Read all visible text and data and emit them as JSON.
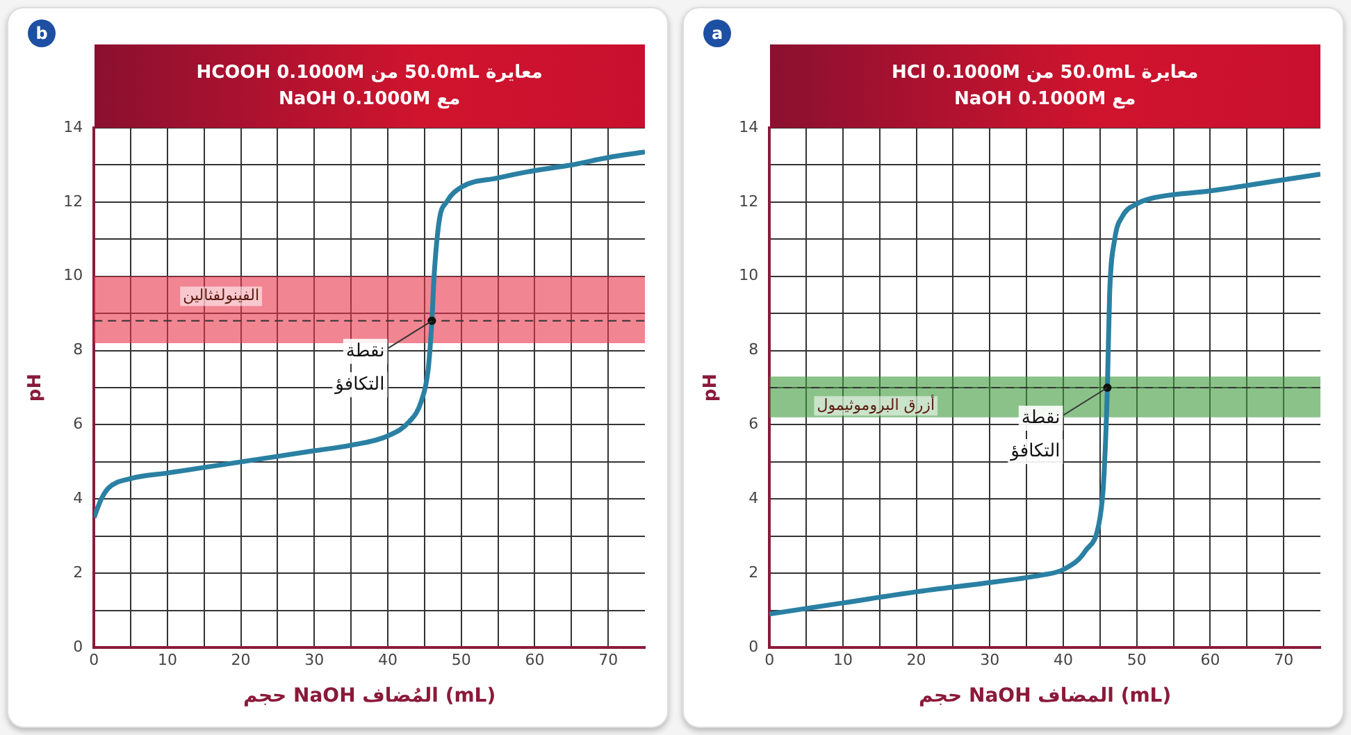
{
  "chart_data": [
    {
      "type": "line",
      "title": "معايرة 50.0mL من HCOOH 0.1000M",
      "subtitle": "مع NaOH 0.1000M",
      "xlabel": "حجم NaOH المُضاف (mL)",
      "ylabel": "pH",
      "annotations": [
        "b",
        {
          "text": "نقطة التكافؤ",
          "x": 46,
          "y": 8.8
        }
      ],
      "series": [
        {
          "color": "#2a80a3",
          "x": [
            0,
            1,
            2,
            5,
            10,
            15,
            20,
            25,
            30,
            35,
            40,
            43,
            44.5,
            45.5,
            46,
            46.3,
            47,
            48,
            50,
            55,
            60,
            65,
            70,
            75
          ],
          "values": [
            3.5,
            4.0,
            4.3,
            4.55,
            4.7,
            4.85,
            5.0,
            5.15,
            5.3,
            5.45,
            5.7,
            6.1,
            6.6,
            7.5,
            8.8,
            10,
            11.5,
            12.0,
            12.4,
            12.65,
            12.85,
            13.0,
            13.2,
            13.35
          ]
        }
      ],
      "xlim": [
        0,
        75
      ],
      "ylim": [
        0,
        14
      ],
      "xticks": [
        0,
        {
          "value": 5,
          "label": null
        },
        10,
        {
          "value": 15,
          "label": null
        },
        20,
        {
          "value": 25,
          "label": null
        },
        30,
        {
          "value": 35,
          "label": null
        },
        40,
        {
          "value": 45,
          "label": null
        },
        50,
        {
          "value": 55,
          "label": null
        },
        60,
        {
          "value": 65,
          "label": null
        },
        70
      ],
      "yticks": [
        0,
        {
          "value": 1,
          "label": null
        },
        2,
        {
          "value": 3,
          "label": null
        },
        4,
        {
          "value": 5,
          "label": null
        },
        6,
        {
          "value": 7,
          "label": null
        },
        8,
        {
          "value": 9,
          "label": null
        },
        10,
        {
          "value": 11,
          "label": null
        },
        12,
        {
          "value": 13,
          "label": null
        },
        14
      ],
      "grid": true,
      "marker": "none",
      "bands": [
        {
          "axis": "y",
          "from": 8.2,
          "to": 10,
          "label": "الفينولفثالين",
          "color": "#e8334a"
        }
      ],
      "ref_lines": [
        {
          "axis": "y",
          "value": 8.8,
          "line_style": "dashed",
          "color": "#333333"
        }
      ]
    },
    {
      "type": "line",
      "title": "معايرة 50.0mL من HCl 0.1000M",
      "subtitle": "مع NaOH 0.1000M",
      "xlabel": "حجم NaOH المضاف (mL)",
      "ylabel": "pH",
      "annotations": [
        "a",
        {
          "text": "نقطة التكافؤ",
          "x": 46,
          "y": 7
        }
      ],
      "series": [
        {
          "color": "#2a80a3",
          "x": [
            0,
            10,
            20,
            30,
            37,
            40,
            43,
            45,
            45.5,
            46,
            46.3,
            47,
            48,
            50,
            52,
            60,
            70,
            75
          ],
          "values": [
            0.9,
            1.2,
            1.5,
            1.75,
            1.95,
            2.1,
            2.6,
            3.5,
            4.5,
            7,
            9.5,
            11,
            11.6,
            11.95,
            12.1,
            12.3,
            12.6,
            12.75
          ]
        }
      ],
      "xlim": [
        0,
        75
      ],
      "ylim": [
        0,
        14
      ],
      "xticks": [
        0,
        {
          "value": 5,
          "label": null
        },
        10,
        {
          "value": 15,
          "label": null
        },
        20,
        {
          "value": 25,
          "label": null
        },
        30,
        {
          "value": 35,
          "label": null
        },
        40,
        {
          "value": 45,
          "label": null
        },
        50,
        {
          "value": 55,
          "label": null
        },
        60,
        {
          "value": 65,
          "label": null
        },
        70
      ],
      "yticks": [
        0,
        {
          "value": 1,
          "label": null
        },
        2,
        {
          "value": 3,
          "label": null
        },
        4,
        {
          "value": 5,
          "label": null
        },
        6,
        {
          "value": 7,
          "label": null
        },
        8,
        {
          "value": 9,
          "label": null
        },
        10,
        {
          "value": 11,
          "label": null
        },
        12,
        {
          "value": 13,
          "label": null
        },
        14
      ],
      "grid": true,
      "marker": "none",
      "bands": [
        {
          "axis": "y",
          "from": 6.2,
          "to": 7.3,
          "label": "أزرق البروموثيمول",
          "color": "#3d9a3a"
        }
      ],
      "ref_lines": [
        {
          "axis": "y",
          "value": 7,
          "line_style": "dashed",
          "color": "#333333"
        }
      ]
    }
  ]
}
